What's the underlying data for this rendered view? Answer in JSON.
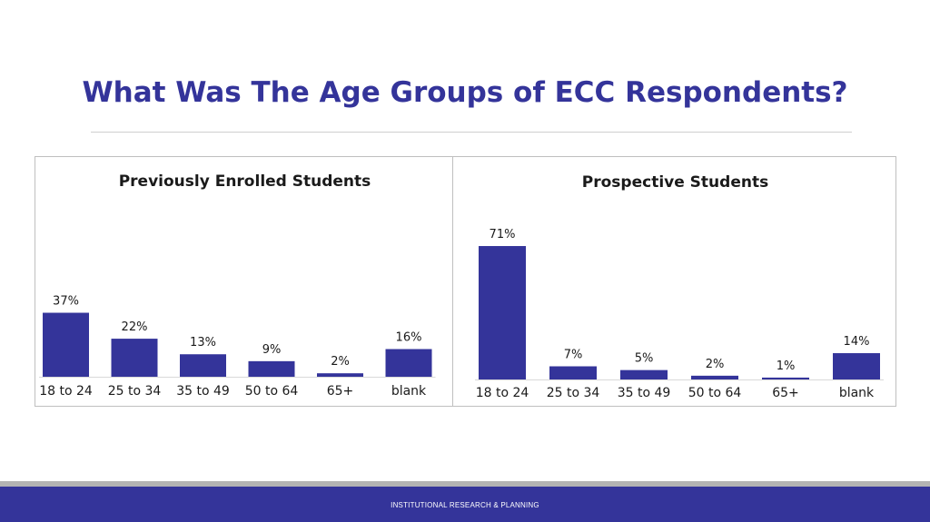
{
  "slide": {
    "title": "What Was The Age Groups of ECC Respondents?",
    "footer": "INSTITUTIONAL RESEARCH & PLANNING"
  },
  "colors": {
    "bar": "#34349a",
    "title": "#34349a",
    "footer": "#34349a"
  },
  "chart_data": [
    {
      "type": "bar",
      "title": "Previously Enrolled Students",
      "categories": [
        "18 to 24",
        "25 to 34",
        "35 to 49",
        "50 to 64",
        "65+",
        "blank"
      ],
      "values": [
        37,
        22,
        13,
        9,
        2,
        16
      ],
      "labels": [
        "37%",
        "22%",
        "13%",
        "9%",
        "2%",
        "16%"
      ],
      "ylim": [
        0,
        75
      ],
      "grid": false,
      "legend": "none"
    },
    {
      "type": "bar",
      "title": "Prospective Students",
      "categories": [
        "18 to 24",
        "25 to 34",
        "35 to 49",
        "50 to 64",
        "65+",
        "blank"
      ],
      "values": [
        71,
        7,
        5,
        2,
        1,
        14
      ],
      "labels": [
        "71%",
        "7%",
        "5%",
        "2%",
        "1%",
        "14%"
      ],
      "ylim": [
        0,
        75
      ],
      "grid": false,
      "legend": "none"
    }
  ]
}
